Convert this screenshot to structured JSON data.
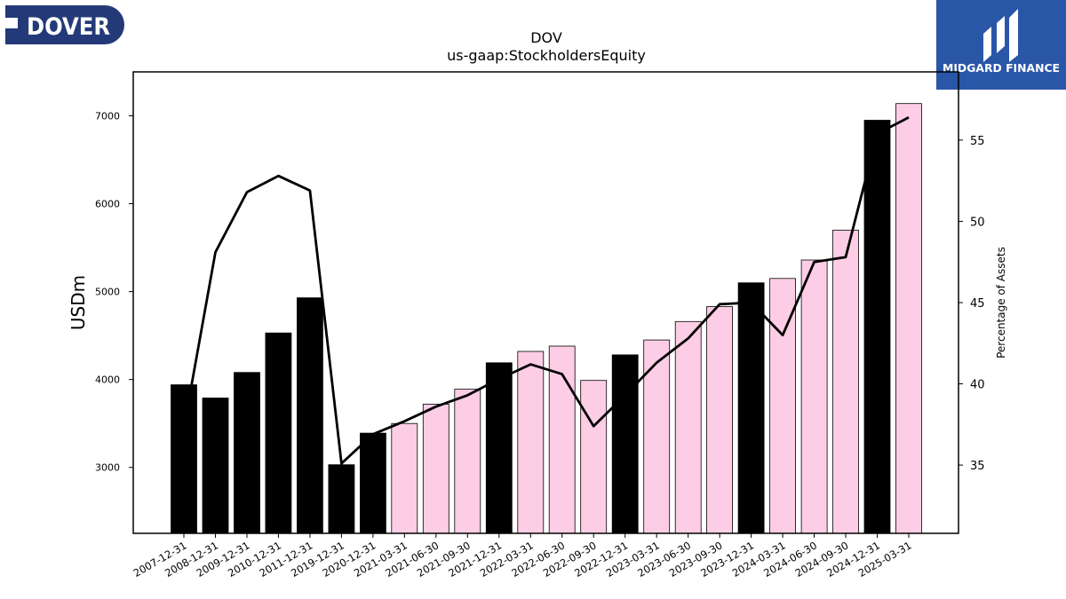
{
  "brand": {
    "left_logo_text": "DOVER",
    "right_logo_text": "MIDGARD FINANCE",
    "left_logo_color": "#243a78",
    "right_logo_color": "#2a56a8"
  },
  "chart_data": {
    "type": "bar",
    "title": "DOV",
    "subtitle": "us-gaap:StockholdersEquity",
    "ylabel": "USDm",
    "y2label": "Percentage of Assets",
    "ylim": [
      2250,
      7500
    ],
    "y2lim": [
      30.8,
      59.2
    ],
    "yticks": [
      3000,
      4000,
      5000,
      6000,
      7000
    ],
    "y2ticks": [
      35,
      40,
      45,
      50,
      55
    ],
    "categories": [
      "2007-12-31",
      "2008-12-31",
      "2009-12-31",
      "2010-12-31",
      "2011-12-31",
      "2019-12-31",
      "2020-12-31",
      "2021-03-31",
      "2021-06-30",
      "2021-09-30",
      "2021-12-31",
      "2022-03-31",
      "2022-06-30",
      "2022-09-30",
      "2022-12-31",
      "2023-03-31",
      "2023-06-30",
      "2023-09-30",
      "2023-12-31",
      "2024-03-31",
      "2024-06-30",
      "2024-09-30",
      "2024-12-31",
      "2025-03-31"
    ],
    "bar_kind": [
      "annual",
      "annual",
      "annual",
      "annual",
      "annual",
      "annual",
      "annual",
      "quarterly",
      "quarterly",
      "quarterly",
      "annual",
      "quarterly",
      "quarterly",
      "quarterly",
      "annual",
      "quarterly",
      "quarterly",
      "quarterly",
      "annual",
      "quarterly",
      "quarterly",
      "quarterly",
      "annual",
      "quarterly"
    ],
    "colors": {
      "annual": "#000000",
      "quarterly": "#fccde5",
      "line": "#000000"
    },
    "series": [
      {
        "type": "bar",
        "axis": "left",
        "values": [
          3940,
          3790,
          4080,
          4530,
          4930,
          3030,
          3390,
          3500,
          3720,
          3890,
          4190,
          4320,
          4380,
          3990,
          4280,
          4450,
          4660,
          4830,
          5100,
          5150,
          5360,
          5700,
          6950,
          7140
        ]
      },
      {
        "type": "line",
        "axis": "right",
        "values": [
          37.3,
          48.1,
          51.8,
          52.8,
          51.9,
          35.1,
          36.9,
          37.7,
          38.6,
          39.3,
          40.3,
          41.2,
          40.6,
          37.4,
          39.3,
          41.3,
          42.8,
          44.9,
          45.0,
          43.0,
          47.5,
          47.8,
          55.4,
          56.4
        ]
      }
    ],
    "grid": false,
    "legend": "none"
  }
}
